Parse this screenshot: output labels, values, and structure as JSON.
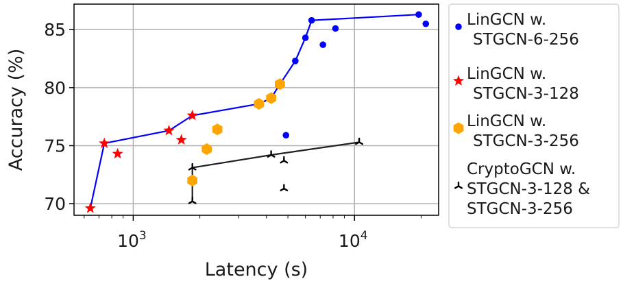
{
  "chart_data": {
    "type": "scatter",
    "xlabel": "Latency (s)",
    "ylabel": "Accuracy (%)",
    "xscale": "log",
    "xlim": [
      540,
      24000
    ],
    "ylim": [
      69,
      87.2
    ],
    "xticks": [
      {
        "value": 1000,
        "base": "10",
        "exp": "3"
      },
      {
        "value": 10000,
        "base": "10",
        "exp": "4"
      }
    ],
    "yticks": [
      70,
      75,
      80,
      85
    ],
    "grid": true,
    "legend_position": "right, outside plot",
    "series": [
      {
        "name": "LinGCN w. STGCN-6-256",
        "name_lines": [
          "LinGCN w.",
          "STGCN-6-256"
        ],
        "marker": "circle",
        "color": "#0000ff",
        "points": [
          [
            5400,
            82.3
          ],
          [
            6000,
            84.3
          ],
          [
            6400,
            85.8
          ],
          [
            7200,
            83.7
          ],
          [
            8200,
            85.1
          ],
          [
            19500,
            86.3
          ],
          [
            21000,
            85.5
          ],
          [
            4900,
            75.9
          ]
        ]
      },
      {
        "name": "LinGCN w. STGCN-3-128",
        "name_lines": [
          "LinGCN w.",
          "STGCN-3-128"
        ],
        "marker": "star",
        "color": "#ff0000",
        "points": [
          [
            640,
            69.6
          ],
          [
            740,
            75.2
          ],
          [
            850,
            74.3
          ],
          [
            1450,
            76.3
          ],
          [
            1650,
            75.5
          ],
          [
            1850,
            77.6
          ]
        ]
      },
      {
        "name": "LinGCN w. STGCN-3-256",
        "name_lines": [
          "LinGCN w.",
          "STGCN-3-256"
        ],
        "marker": "hexagon",
        "color": "#ffa500",
        "points": [
          [
            1850,
            72.0
          ],
          [
            2150,
            74.7
          ],
          [
            2400,
            76.4
          ],
          [
            3700,
            78.6
          ],
          [
            4200,
            79.1
          ],
          [
            4600,
            80.3
          ]
        ]
      },
      {
        "name": "CryptoGCN w. STGCN-3-128 & STGCN-3-256",
        "name_lines": [
          "CryptoGCN w.",
          "STGCN-3-128 &",
          "STGCN-3-256"
        ],
        "marker": "tri",
        "color": "#000000",
        "points": [
          [
            1850,
            73.1
          ],
          [
            1850,
            70.2
          ],
          [
            4200,
            74.2
          ],
          [
            4800,
            73.7
          ],
          [
            4800,
            71.3
          ],
          [
            10500,
            75.3
          ]
        ]
      }
    ],
    "lines": [
      {
        "color": "#0000ff",
        "points": [
          [
            640,
            69.6
          ],
          [
            740,
            75.2
          ],
          [
            1450,
            76.3
          ],
          [
            1850,
            77.6
          ],
          [
            3700,
            78.6
          ],
          [
            4200,
            79.1
          ],
          [
            4600,
            80.3
          ],
          [
            5400,
            82.3
          ],
          [
            6000,
            84.3
          ],
          [
            6400,
            85.8
          ],
          [
            19500,
            86.3
          ]
        ]
      },
      {
        "color": "#231f20",
        "points": [
          [
            1850,
            70.2
          ],
          [
            1850,
            73.1
          ],
          [
            4200,
            74.2
          ],
          [
            10500,
            75.3
          ]
        ]
      }
    ]
  }
}
